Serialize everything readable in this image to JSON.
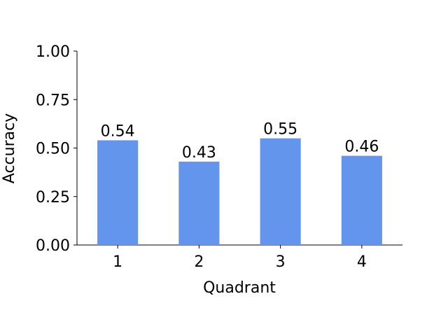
{
  "chart_data": {
    "type": "bar",
    "xlabel": "Quadrant",
    "ylabel": "Accuracy",
    "categories": [
      "1",
      "2",
      "3",
      "4"
    ],
    "values": [
      0.54,
      0.43,
      0.55,
      0.46
    ],
    "color": "#6495ed",
    "ylim": [
      0,
      1
    ],
    "yticks": [
      {
        "value": 0,
        "label": "0.00"
      },
      0.25,
      {
        "value": 0.5,
        "label": "0.50"
      },
      0.75,
      {
        "value": 1,
        "label": "1.00"
      }
    ],
    "grid": false
  }
}
